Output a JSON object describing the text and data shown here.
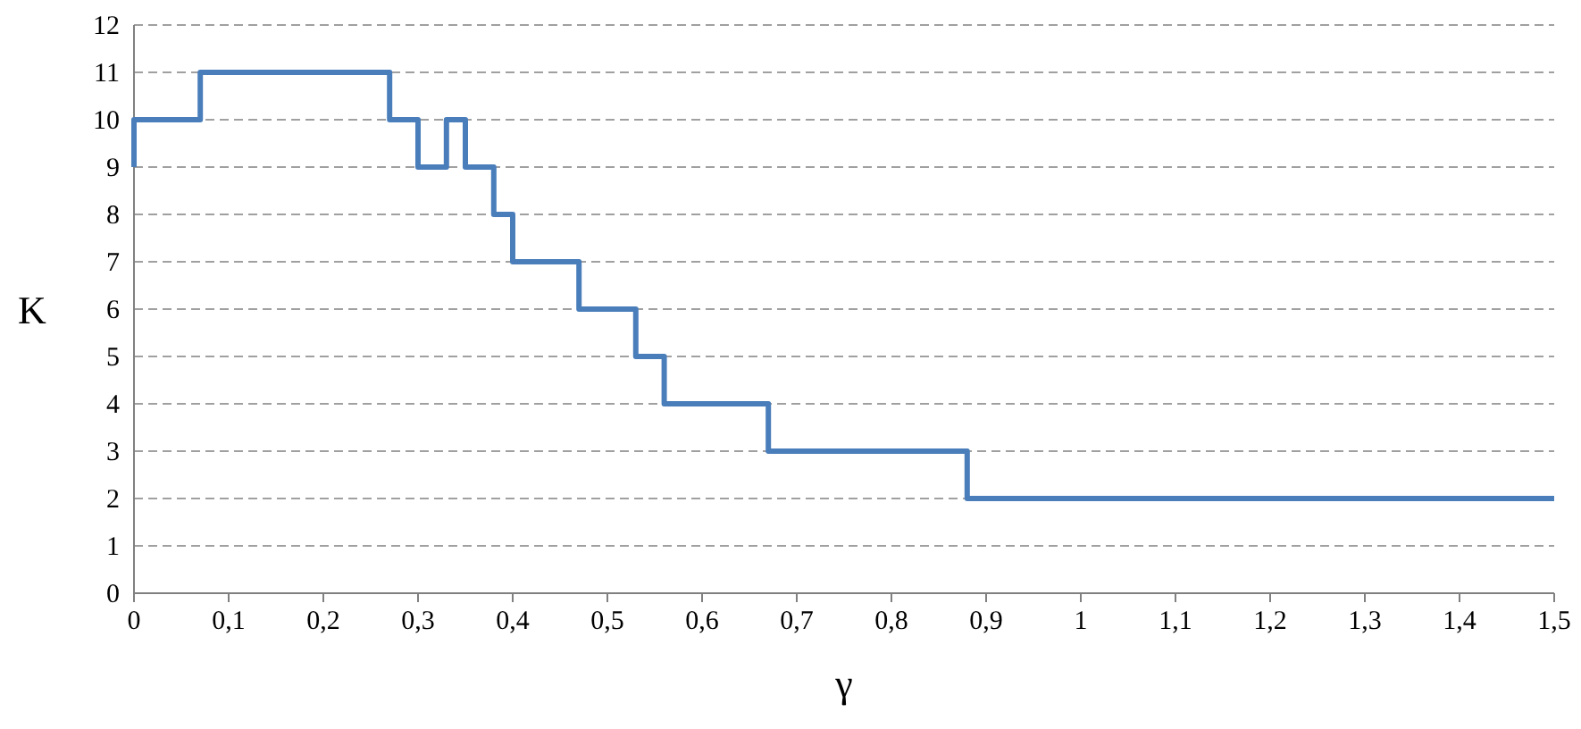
{
  "chart_data": {
    "type": "step",
    "xlabel": "γ",
    "ylabel": "K",
    "x": [
      0,
      0,
      0.07,
      0.27,
      0.3,
      0.33,
      0.35,
      0.38,
      0.4,
      0.47,
      0.53,
      0.56,
      0.67,
      0.88,
      1.5
    ],
    "series": [
      {
        "color": "#4a7ebb",
        "values": [
          9,
          10,
          11,
          10,
          9,
          10,
          9,
          8,
          7,
          6,
          5,
          4,
          3,
          2,
          2
        ]
      }
    ],
    "xlim": [
      0,
      1.5
    ],
    "xticks": [
      0,
      {
        "value": 0.1,
        "label": "0,1"
      },
      {
        "value": 0.2,
        "label": "0,2"
      },
      {
        "value": 0.3,
        "label": "0,3"
      },
      {
        "value": 0.4,
        "label": "0,4"
      },
      {
        "value": 0.5,
        "label": "0,5"
      },
      {
        "value": 0.6,
        "label": "0,6"
      },
      {
        "value": 0.7,
        "label": "0,7"
      },
      {
        "value": 0.8,
        "label": "0,8"
      },
      {
        "value": 0.9,
        "label": "0,9"
      },
      1,
      {
        "value": 1.1,
        "label": "1,1"
      },
      {
        "value": 1.2,
        "label": "1,2"
      },
      {
        "value": 1.3,
        "label": "1,3"
      },
      {
        "value": 1.4,
        "label": "1,4"
      },
      {
        "value": 1.5,
        "label": "1,5"
      }
    ],
    "ylim": [
      0,
      12
    ],
    "yticks": [
      0,
      1,
      2,
      3,
      4,
      5,
      6,
      7,
      8,
      9,
      10,
      11,
      12
    ],
    "grid": "y",
    "marker": "none",
    "line_style": "solid"
  }
}
